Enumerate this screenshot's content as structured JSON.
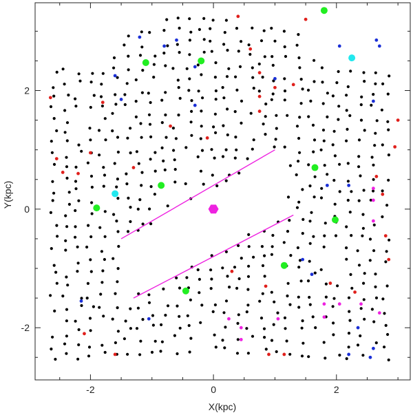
{
  "chart_data": {
    "type": "scatter",
    "xlabel": "X(kpc)",
    "ylabel": "Y(kpc)",
    "xlim": [
      -2.9,
      3.2
    ],
    "ylim": [
      -2.88,
      3.48
    ],
    "xticks": [
      -2,
      0,
      2
    ],
    "yticks": [
      -2,
      0,
      2
    ],
    "grid": false,
    "colors": {
      "grid_points": "#000000",
      "red": "#e0201c",
      "blue": "#1a2fd6",
      "green": "#22ee22",
      "cyan": "#22e8ee",
      "magenta": "#ee22e0",
      "sun": "#ee22e0",
      "lines": "#ee22e0"
    },
    "sun": {
      "x": 0.0,
      "y": 0.0
    },
    "lines": [
      {
        "x": [
          -1.5,
          1.0
        ],
        "y": [
          -0.5,
          1.0
        ]
      },
      {
        "x": [
          -1.3,
          1.3
        ],
        "y": [
          -1.5,
          -0.1
        ]
      }
    ],
    "highlight_points": {
      "green": [
        [
          1.8,
          3.35
        ],
        [
          -1.1,
          2.47
        ],
        [
          -0.2,
          2.5
        ],
        [
          1.65,
          0.7
        ],
        [
          -0.85,
          0.4
        ],
        [
          -1.9,
          0.02
        ],
        [
          1.98,
          -0.18
        ],
        [
          1.15,
          -0.95
        ],
        [
          -0.45,
          -1.38
        ]
      ],
      "cyan": [
        [
          2.25,
          2.55
        ],
        [
          -1.6,
          0.26
        ]
      ],
      "red": [
        [
          -2.65,
          1.88
        ],
        [
          -2.55,
          0.85
        ],
        [
          -2.45,
          0.62
        ],
        [
          -2.2,
          0.6
        ],
        [
          -2.0,
          0.95
        ],
        [
          -1.8,
          1.8
        ],
        [
          -1.3,
          0.7
        ],
        [
          -0.7,
          1.4
        ],
        [
          -0.1,
          1.2
        ],
        [
          0.4,
          3.25
        ],
        [
          0.6,
          2.7
        ],
        [
          0.75,
          2.3
        ],
        [
          0.75,
          1.9
        ],
        [
          0.75,
          1.65
        ],
        [
          1.0,
          2.05
        ],
        [
          1.3,
          2.1
        ],
        [
          1.5,
          3.2
        ],
        [
          2.65,
          0.55
        ],
        [
          2.75,
          0.25
        ],
        [
          2.95,
          1.05
        ],
        [
          3.0,
          1.5
        ],
        [
          2.8,
          -0.45
        ],
        [
          2.85,
          -0.85
        ],
        [
          2.3,
          -1.4
        ],
        [
          1.9,
          -1.25
        ],
        [
          0.85,
          -1.3
        ],
        [
          -1.6,
          -2.45
        ],
        [
          -2.1,
          -2.1
        ],
        [
          0.9,
          -2.45
        ],
        [
          1.15,
          -2.45
        ],
        [
          0.3,
          -1.05
        ]
      ],
      "blue": [
        [
          -1.2,
          2.9
        ],
        [
          -0.8,
          2.75
        ],
        [
          -0.6,
          2.85
        ],
        [
          -0.3,
          2.4
        ],
        [
          -0.3,
          1.75
        ],
        [
          -1.6,
          2.25
        ],
        [
          -1.5,
          1.85
        ],
        [
          1.0,
          2.2
        ],
        [
          2.05,
          2.75
        ],
        [
          2.65,
          2.85
        ],
        [
          2.7,
          2.75
        ],
        [
          2.6,
          1.82
        ],
        [
          1.85,
          0.4
        ],
        [
          2.2,
          0.4
        ],
        [
          1.45,
          -0.85
        ],
        [
          1.6,
          -1.1
        ],
        [
          -2.15,
          -1.55
        ],
        [
          -1.05,
          -1.85
        ],
        [
          2.35,
          -2.0
        ],
        [
          2.6,
          -2.35
        ],
        [
          2.2,
          -2.45
        ],
        [
          2.55,
          -2.5
        ]
      ],
      "magenta": [
        [
          2.6,
          0.15
        ],
        [
          2.6,
          0.35
        ],
        [
          2.6,
          -0.2
        ],
        [
          0.25,
          -1.85
        ],
        [
          0.45,
          -2.0
        ],
        [
          0.45,
          -2.2
        ],
        [
          1.05,
          -1.85
        ],
        [
          1.8,
          -1.6
        ],
        [
          1.8,
          -1.82
        ],
        [
          2.05,
          -1.6
        ],
        [
          2.4,
          -1.6
        ],
        [
          2.7,
          -1.75
        ]
      ]
    }
  }
}
